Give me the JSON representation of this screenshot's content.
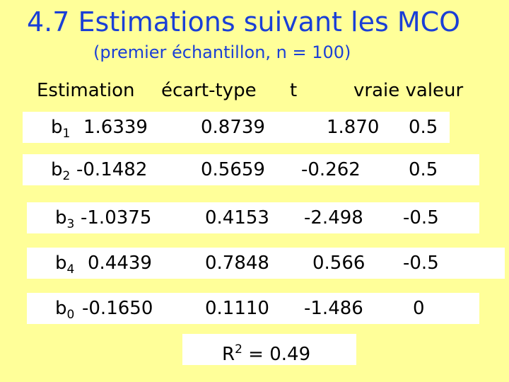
{
  "title": "4.7 Estimations suivant les MCO",
  "subtitle": "(premier échantillon, n = 100)",
  "headers": [
    "Estimation",
    "écart-type",
    "t",
    "vraie valeur"
  ],
  "rows": [
    {
      "name": "b",
      "sub": "1",
      "estimate": "1.6339",
      "se": "0.8739",
      "t": "1.870",
      "true": "0.5"
    },
    {
      "name": "b",
      "sub": "2",
      "estimate": "-0.1482",
      "se": "0.5659",
      "t": "-0.262",
      "true": "0.5"
    },
    {
      "name": "b",
      "sub": "3",
      "estimate": "-1.0375",
      "se": "0.4153",
      "t": "-2.498",
      "true": "-0.5"
    },
    {
      "name": "b",
      "sub": "4",
      "estimate": "0.4439",
      "se": "0.7848",
      "t": "0.566",
      "true": "-0.5"
    },
    {
      "name": "b",
      "sub": "0",
      "estimate": "-0.1650",
      "se": "0.1110",
      "t": "-1.486",
      "true": "0"
    }
  ],
  "r2": {
    "label": "R",
    "sup": "2",
    "text": " = 0.49"
  },
  "colors": {
    "background": "#ffff99",
    "title": "#1a3fd6",
    "row_bg": "#ffffff"
  }
}
